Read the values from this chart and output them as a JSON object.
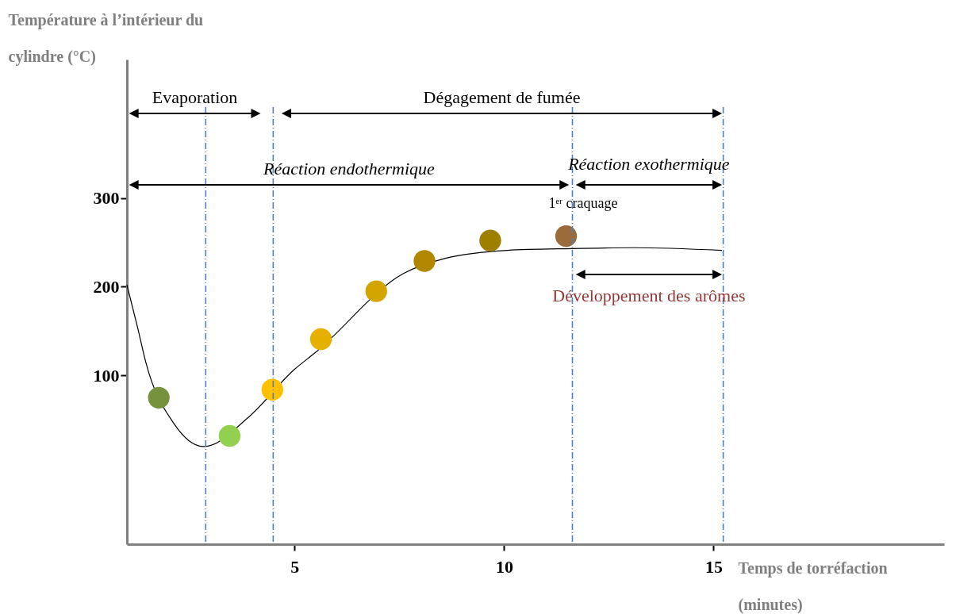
{
  "chart_data": {
    "type": "line",
    "xlabel": "Temps de torréfaction (minutes)",
    "ylabel": "Température à l’intérieur du cylindre (°C)",
    "xlim": [
      1,
      20.5
    ],
    "ylim": [
      -90,
      456
    ],
    "xticks": [
      5,
      10,
      15
    ],
    "yticks": [
      100,
      200,
      300
    ],
    "series": [
      {
        "type": "line",
        "color": "#000000",
        "x": [
          1.0,
          1.25,
          1.45,
          2.12,
          2.84,
          3.9,
          5.0,
          5.5,
          7.6,
          8.6,
          10.08,
          11.6,
          13.1,
          15.2
        ],
        "values": [
          202,
          155,
          115,
          46,
          20,
          53,
          107,
          126,
          215,
          232,
          241,
          243,
          244,
          241
        ]
      },
      {
        "type": "scatter",
        "marker": "circle",
        "x": [
          1.76,
          3.45,
          4.47,
          5.63,
          6.95,
          8.1,
          9.67,
          11.48
        ],
        "values": [
          75,
          32,
          84,
          141,
          195,
          229,
          252,
          257
        ],
        "colors": [
          "#76923c",
          "#92d050",
          "#ffc000",
          "#e6b000",
          "#d4a500",
          "#b38600",
          "#9e7f00",
          "#9c6b3c"
        ]
      }
    ],
    "ref_lines": [
      {
        "axis": "x",
        "value": 2.88,
        "color": "#4f81bd",
        "line_style": "dashed"
      },
      {
        "axis": "x",
        "value": 4.49,
        "color": "#4f81bd",
        "line_style": "dashed"
      },
      {
        "axis": "x",
        "value": 11.63,
        "label": "1ᵉʳ craquage",
        "color": "#4f81bd",
        "line_style": "dashed"
      },
      {
        "axis": "x",
        "value": 15.23,
        "color": "#4f81bd",
        "line_style": "dashed"
      }
    ],
    "annotations": [
      "Evaporation",
      "Dégagement de fumée",
      "Réaction endothermique",
      "Réaction exothermique",
      "Développement des arômes"
    ]
  }
}
